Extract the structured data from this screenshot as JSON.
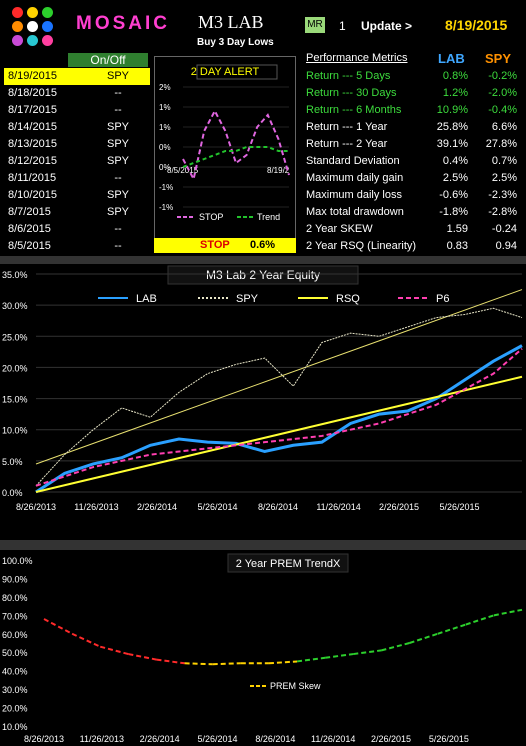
{
  "header": {
    "brand": "MOSAIC",
    "title": "M3   LAB",
    "subtitle": "Buy 3 Day Lows",
    "mr_badge": "MR",
    "mr_number": "1",
    "update_label": "Update  >",
    "update_date": "8/19/2015",
    "logo_colors": [
      "#ff2a2a",
      "#ffd200",
      "#2ccf2c",
      "#ff8c00",
      "#ffffff",
      "#1a74ff",
      "#c94ad6",
      "#28c7d2",
      "#ff3fa0"
    ]
  },
  "signals": {
    "header": "On/Off",
    "rows": [
      {
        "date": "8/19/2015",
        "value": "SPY"
      },
      {
        "date": "8/18/2015",
        "value": "--"
      },
      {
        "date": "8/17/2015",
        "value": "--"
      },
      {
        "date": "8/14/2015",
        "value": "SPY"
      },
      {
        "date": "8/13/2015",
        "value": "SPY"
      },
      {
        "date": "8/12/2015",
        "value": "SPY"
      },
      {
        "date": "8/11/2015",
        "value": "--"
      },
      {
        "date": "8/10/2015",
        "value": "SPY"
      },
      {
        "date": "8/7/2015",
        "value": "SPY"
      },
      {
        "date": "8/6/2015",
        "value": "--"
      },
      {
        "date": "8/5/2015",
        "value": "--"
      }
    ]
  },
  "alert": {
    "title": "2 DAY  ALERT",
    "stop_label": "STOP",
    "stop_value": "0.6%",
    "legend_stop": "STOP",
    "legend_trend": "Trend",
    "x_start": "8/5/2015",
    "x_end": "8/19/2",
    "yticks": [
      "2%",
      "1%",
      "1%",
      "0%",
      "0%",
      "-1%",
      "-1%"
    ]
  },
  "performance": {
    "header": "Performance Metrics",
    "col_lab": "LAB",
    "col_spy": "SPY",
    "rows": [
      {
        "name": "Return --- 5 Days",
        "lab": "0.8%",
        "spy": "-0.2%",
        "color": "#3ddc3d"
      },
      {
        "name": "Return --- 30 Days",
        "lab": "1.2%",
        "spy": "-2.0%",
        "color": "#3ddc3d"
      },
      {
        "name": "Return --- 6 Months",
        "lab": "10.9%",
        "spy": "-0.4%",
        "color": "#3ddc3d"
      },
      {
        "name": "Return --- 1 Year",
        "lab": "25.8%",
        "spy": "6.6%",
        "color": "#ffffff"
      },
      {
        "name": "Return --- 2 Year",
        "lab": "39.1%",
        "spy": "27.8%",
        "color": "#ffffff"
      },
      {
        "name": "Standard Deviation",
        "lab": "0.4%",
        "spy": "0.7%",
        "color": "#ffffff"
      },
      {
        "name": "Maximum daily gain",
        "lab": "2.5%",
        "spy": "2.5%",
        "color": "#ffffff"
      },
      {
        "name": "Maximum daily loss",
        "lab": "-0.6%",
        "spy": "-2.3%",
        "color": "#ffffff"
      },
      {
        "name": "Max total drawdown",
        "lab": "-1.8%",
        "spy": "-2.8%",
        "color": "#ffffff"
      },
      {
        "name": "2 Year SKEW",
        "lab": "1.59",
        "spy": "-0.24",
        "color": "#ffffff"
      },
      {
        "name": "2 Year RSQ  (Linearity)",
        "lab": "0.83",
        "spy": "0.94",
        "color": "#ffffff"
      }
    ]
  },
  "chart_data": [
    {
      "type": "line",
      "title": "2 DAY  ALERT",
      "x": [
        "8/5/2015",
        "8/6/2015",
        "8/7/2015",
        "8/10/2015",
        "8/11/2015",
        "8/12/2015",
        "8/13/2015",
        "8/14/2015",
        "8/17/2015",
        "8/18/2015",
        "8/19/2015"
      ],
      "series": [
        {
          "name": "STOP",
          "color": "#e066e0",
          "values": [
            0.2,
            -0.3,
            0.9,
            1.4,
            0.9,
            0.1,
            0.3,
            1.0,
            1.3,
            0.7,
            -0.2
          ]
        },
        {
          "name": "Trend",
          "color": "#22c22c",
          "values": [
            0.0,
            0.1,
            0.2,
            0.3,
            0.4,
            0.4,
            0.5,
            0.5,
            0.5,
            0.4,
            0.4
          ]
        }
      ],
      "ylim": [
        -1,
        2
      ]
    },
    {
      "type": "line",
      "title": "M3  Lab 2 Year  Equity",
      "x_ticks": [
        "8/26/2013",
        "11/26/2013",
        "2/26/2014",
        "5/26/2014",
        "8/26/2014",
        "11/26/2014",
        "2/26/2015",
        "5/26/2015"
      ],
      "y_ticks": [
        "0.0%",
        "5.0%",
        "10.0%",
        "15.0%",
        "20.0%",
        "25.0%",
        "30.0%",
        "35.0%"
      ],
      "ylim": [
        0,
        35
      ],
      "legend_position": "top",
      "series": [
        {
          "name": "LAB",
          "color": "#2aa0ff",
          "points": [
            [
              0,
              0
            ],
            [
              1,
              3
            ],
            [
              2,
              4.5
            ],
            [
              3,
              5.5
            ],
            [
              4,
              7.5
            ],
            [
              5,
              8.5
            ],
            [
              6,
              8
            ],
            [
              7,
              7.8
            ],
            [
              8,
              6.5
            ],
            [
              9,
              7.5
            ],
            [
              10,
              8
            ],
            [
              11,
              11
            ],
            [
              12,
              12.5
            ],
            [
              13,
              13
            ],
            [
              14,
              15
            ],
            [
              15,
              18
            ],
            [
              16,
              21
            ],
            [
              17,
              23.5
            ]
          ]
        },
        {
          "name": "SPY",
          "color": "#e8e6c8",
          "points": [
            [
              0,
              1
            ],
            [
              1,
              6
            ],
            [
              2,
              10
            ],
            [
              3,
              13.5
            ],
            [
              4,
              12
            ],
            [
              5,
              16
            ],
            [
              6,
              19
            ],
            [
              7,
              20.5
            ],
            [
              8,
              21.5
            ],
            [
              9,
              17
            ],
            [
              10,
              24
            ],
            [
              11,
              25.5
            ],
            [
              12,
              25
            ],
            [
              13,
              26.5
            ],
            [
              14,
              28
            ],
            [
              15,
              28.5
            ],
            [
              16,
              29.5
            ],
            [
              17,
              28
            ]
          ]
        },
        {
          "name": "RSQ",
          "color": "#ffff33",
          "points": [
            [
              0,
              0
            ],
            [
              17,
              18.5
            ]
          ]
        },
        {
          "name": "P6",
          "color": "#ff3fb0",
          "points": [
            [
              0,
              1
            ],
            [
              2,
              4
            ],
            [
              4,
              6
            ],
            [
              6,
              7
            ],
            [
              8,
              8
            ],
            [
              10,
              9
            ],
            [
              12,
              11
            ],
            [
              14,
              14
            ],
            [
              16,
              19
            ],
            [
              17,
              23
            ]
          ]
        }
      ],
      "spy_trend": {
        "color": "#e8e070",
        "points": [
          [
            0,
            4.5
          ],
          [
            17,
            32.5
          ]
        ]
      }
    },
    {
      "type": "line",
      "title": "2 Year  PREM  TrendX",
      "x_ticks": [
        "8/26/2013",
        "11/26/2013",
        "2/26/2014",
        "5/26/2014",
        "8/26/2014",
        "11/26/2014",
        "2/26/2015",
        "5/26/2015"
      ],
      "y_ticks": [
        "10.0%",
        "20.0%",
        "30.0%",
        "40.0%",
        "50.0%",
        "60.0%",
        "70.0%",
        "80.0%",
        "90.0%",
        "100.0%"
      ],
      "ylim": [
        10,
        100
      ],
      "series": [
        {
          "name": "PREM Skew",
          "colors": [
            "#ff2a2a",
            "#ffd200",
            "#2ccf2c"
          ],
          "points": [
            [
              0,
              68
            ],
            [
              1,
              60
            ],
            [
              2,
              53
            ],
            [
              3,
              49
            ],
            [
              4,
              46
            ],
            [
              5,
              44
            ],
            [
              6,
              43.5
            ],
            [
              7,
              44
            ],
            [
              8,
              44
            ],
            [
              9,
              45
            ],
            [
              10,
              47
            ],
            [
              11,
              49
            ],
            [
              12,
              51
            ],
            [
              13,
              55
            ],
            [
              14,
              60
            ],
            [
              15,
              65
            ],
            [
              16,
              70
            ],
            [
              17,
              73
            ]
          ]
        }
      ]
    }
  ]
}
